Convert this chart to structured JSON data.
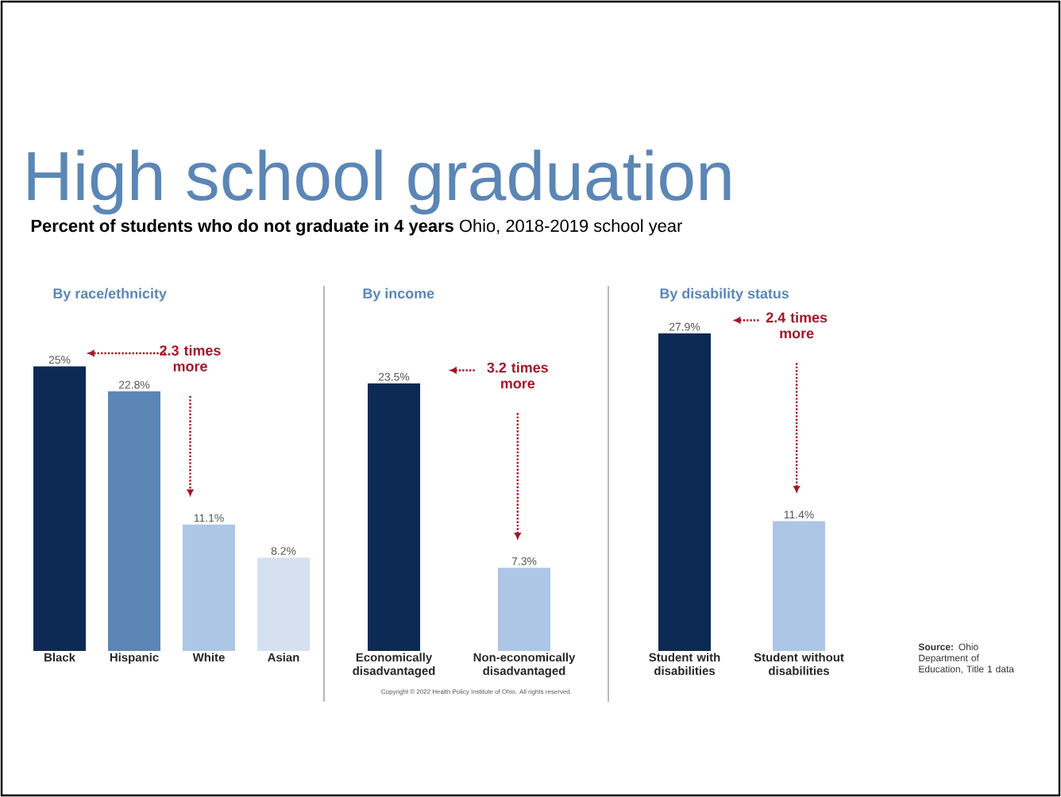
{
  "chart_data": [
    {
      "type": "bar",
      "title": "By race/ethnicity",
      "categories": [
        "Black",
        "Hispanic",
        "White",
        "Asian"
      ],
      "values": [
        25,
        22.8,
        11.1,
        8.2
      ],
      "colors": [
        "#0d2a55",
        "#5b86b5",
        "#adc6e6",
        "#d5e1f1"
      ],
      "value_labels": [
        "25%",
        "22.8%",
        "11.1%",
        "8.2%"
      ],
      "annotations": [
        "High school graduation",
        "**Percent of students who do not graduate in 4 years** Ohio, 2018-2019 school year",
        "2.3 times more"
      ]
    },
    {
      "type": "bar",
      "title": "By income",
      "categories": [
        "Economically disadvantaged",
        "Non-economically disadvantaged"
      ],
      "values": [
        23.5,
        7.3
      ],
      "colors": [
        "#0d2a55",
        "#adc6e6"
      ],
      "value_labels": [
        "23.5%",
        "7.3%"
      ],
      "annotations": [
        "3.2 times more",
        "Copyright © 2022 Health Policy Institute of Ohio. All rights reserved."
      ]
    },
    {
      "type": "bar",
      "title": "By disability status",
      "categories": [
        "Student with disabilities",
        "Student without disabilities"
      ],
      "values": [
        27.9,
        11.4
      ],
      "colors": [
        "#0d2a55",
        "#adc6e6"
      ],
      "value_labels": [
        "27.9%",
        "11.4%"
      ],
      "annotations": [
        "2.4 times more",
        "**Source:** Ohio Department of Education, Title 1 data"
      ]
    }
  ]
}
